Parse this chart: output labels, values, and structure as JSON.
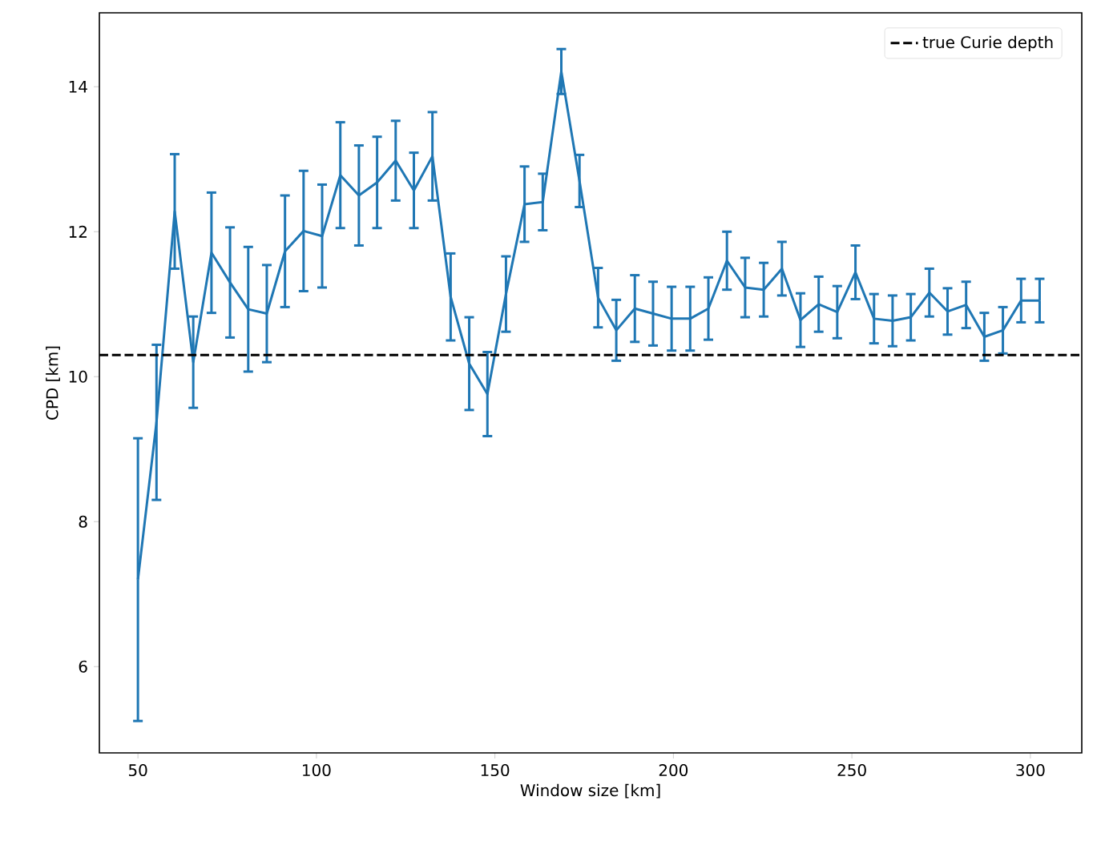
{
  "chart_data": {
    "type": "line",
    "xlabel": "Window size [km]",
    "ylabel": "CPD [km]",
    "x": [
      50,
      55.2,
      60.3,
      65.5,
      70.6,
      75.8,
      80.9,
      86.1,
      91.2,
      96.4,
      101.6,
      106.7,
      111.9,
      117.0,
      122.2,
      127.3,
      132.5,
      137.6,
      142.8,
      147.9,
      153.1,
      158.3,
      163.4,
      168.6,
      173.7,
      178.9,
      184.0,
      189.2,
      194.3,
      199.5,
      204.7,
      209.8,
      215.0,
      220.1,
      225.3,
      230.4,
      235.6,
      240.7,
      245.9,
      251.0,
      256.2,
      261.4,
      266.5,
      271.7,
      276.8,
      282.0,
      287.1,
      292.3,
      297.4,
      302.6
    ],
    "series": [
      {
        "color": "#1f77b4",
        "values": [
          7.2,
          9.37,
          12.28,
          10.2,
          11.71,
          11.3,
          10.93,
          10.87,
          11.73,
          12.01,
          11.94,
          12.78,
          12.5,
          12.68,
          12.98,
          12.57,
          13.04,
          11.1,
          10.18,
          9.76,
          11.14,
          12.38,
          12.41,
          14.21,
          12.7,
          11.09,
          10.64,
          10.94,
          10.87,
          10.8,
          10.8,
          10.94,
          11.6,
          11.23,
          11.2,
          11.49,
          10.78,
          11.0,
          10.89,
          11.44,
          10.8,
          10.77,
          10.82,
          11.16,
          10.9,
          10.99,
          10.55,
          10.64,
          11.05,
          11.05
        ],
        "errors": [
          1.95,
          1.07,
          0.79,
          0.63,
          0.83,
          0.76,
          0.86,
          0.67,
          0.77,
          0.83,
          0.71,
          0.73,
          0.69,
          0.63,
          0.55,
          0.52,
          0.61,
          0.6,
          0.64,
          0.58,
          0.52,
          0.52,
          0.39,
          0.31,
          0.36,
          0.41,
          0.42,
          0.46,
          0.44,
          0.44,
          0.44,
          0.43,
          0.4,
          0.41,
          0.37,
          0.37,
          0.37,
          0.38,
          0.36,
          0.37,
          0.34,
          0.35,
          0.32,
          0.33,
          0.32,
          0.32,
          0.33,
          0.32,
          0.3,
          0.3
        ]
      }
    ],
    "ref_lines": [
      {
        "axis": "y",
        "value": 10.3,
        "label": "true Curie depth",
        "color": "#000000",
        "line_style": "dashed"
      }
    ],
    "xlim": [
      39.2,
      314.4
    ],
    "ylim": [
      4.81,
      15.02
    ],
    "xticks": [
      50,
      100,
      150,
      200,
      250,
      300
    ],
    "yticks": [
      6,
      8,
      10,
      12,
      14
    ],
    "legend": "top right",
    "grid": false,
    "marker": "none"
  }
}
